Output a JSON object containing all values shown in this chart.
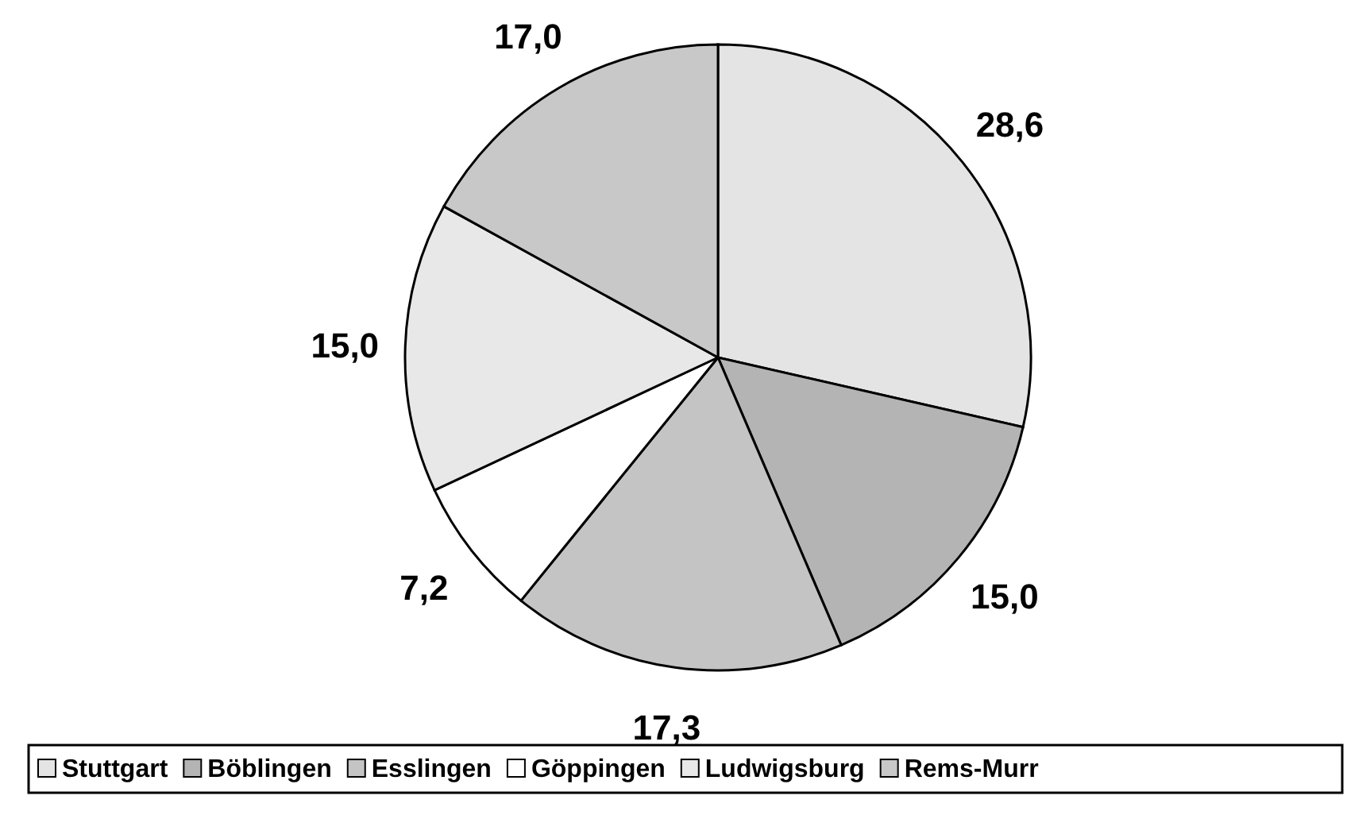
{
  "chart_data": {
    "type": "pie",
    "categories": [
      "Stuttgart",
      "Böblingen",
      "Esslingen",
      "Göppingen",
      "Ludwigsburg",
      "Rems-Murr"
    ],
    "values": [
      28.6,
      15.0,
      17.3,
      7.2,
      15.0,
      17.0
    ],
    "value_labels": [
      "28,6",
      "15,0",
      "17,3",
      "7,2",
      "15,0",
      "17,0"
    ],
    "colors": [
      "#e4e4e4",
      "#b4b4b4",
      "#c4c4c4",
      "#ffffff",
      "#e8e8e8",
      "#c8c8c8"
    ],
    "legend": "bottom"
  }
}
